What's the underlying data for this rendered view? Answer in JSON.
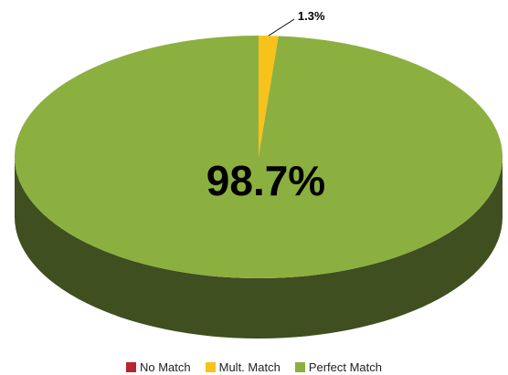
{
  "chart_data": {
    "type": "pie",
    "style": "3d",
    "slices": [
      {
        "name": "No Match",
        "value": 0.0,
        "color": "#b5262e",
        "label": ""
      },
      {
        "name": "Mult. Match",
        "value": 1.3,
        "color": "#f7c21a",
        "label": "1.3%"
      },
      {
        "name": "Perfect Match",
        "value": 98.7,
        "color": "#8cb040",
        "label": "98.7%"
      }
    ],
    "side_color": "#3f4f20",
    "legend_position": "bottom"
  }
}
